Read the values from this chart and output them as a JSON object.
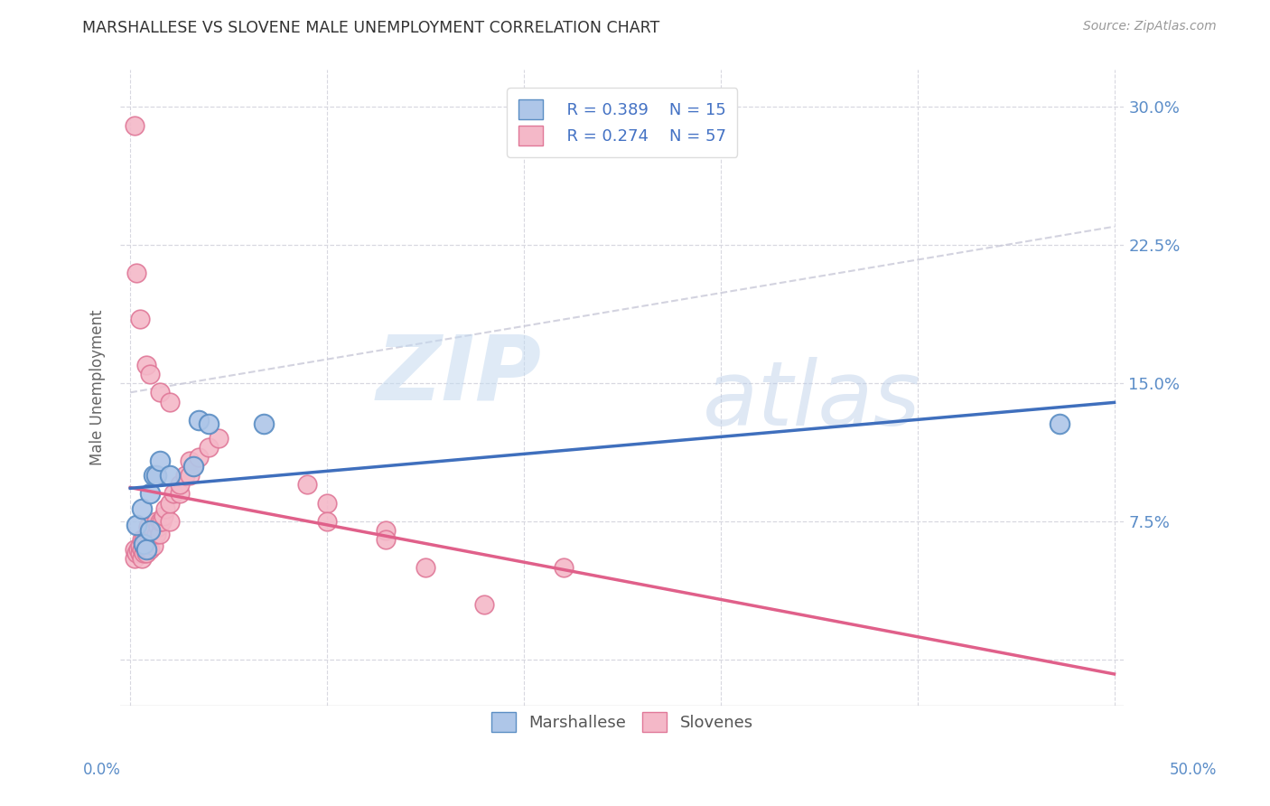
{
  "title": "MARSHALLESE VS SLOVENE MALE UNEMPLOYMENT CORRELATION CHART",
  "source": "Source: ZipAtlas.com",
  "ylabel": "Male Unemployment",
  "yticks": [
    0.0,
    0.075,
    0.15,
    0.225,
    0.3
  ],
  "ytick_labels": [
    "",
    "7.5%",
    "15.0%",
    "22.5%",
    "30.0%"
  ],
  "xlim": [
    -0.005,
    0.505
  ],
  "ylim": [
    -0.025,
    0.32
  ],
  "plot_xlim": [
    0.0,
    0.5
  ],
  "watermark_zip": "ZIP",
  "watermark_atlas": "atlas",
  "legend_r_marshallese": "R = 0.389",
  "legend_n_marshallese": "N = 15",
  "legend_r_slovene": "R = 0.274",
  "legend_n_slovene": "N = 57",
  "marshallese_color": "#aec6e8",
  "slovene_color": "#f4b8c8",
  "marshallese_edge_color": "#5b8ec4",
  "slovene_edge_color": "#e07898",
  "marshallese_line_color": "#3f6fbd",
  "slovene_line_color": "#e0608a",
  "dashed_line_color": "#c8c8d8",
  "background_color": "#ffffff",
  "grid_color": "#d8d8e0",
  "marshallese_x": [
    0.003,
    0.006,
    0.007,
    0.008,
    0.01,
    0.01,
    0.012,
    0.013,
    0.015,
    0.02,
    0.032,
    0.035,
    0.04,
    0.068,
    0.472
  ],
  "marshallese_y": [
    0.073,
    0.082,
    0.063,
    0.06,
    0.07,
    0.09,
    0.1,
    0.1,
    0.108,
    0.1,
    0.105,
    0.13,
    0.128,
    0.128,
    0.128
  ],
  "slovene_x": [
    0.002,
    0.002,
    0.003,
    0.004,
    0.005,
    0.005,
    0.006,
    0.006,
    0.006,
    0.007,
    0.007,
    0.007,
    0.008,
    0.008,
    0.009,
    0.009,
    0.009,
    0.01,
    0.01,
    0.01,
    0.012,
    0.012,
    0.013,
    0.013,
    0.014,
    0.015,
    0.015,
    0.016,
    0.017,
    0.018,
    0.02,
    0.02,
    0.022,
    0.025,
    0.025,
    0.028,
    0.03,
    0.03,
    0.032,
    0.035,
    0.04,
    0.045,
    0.09,
    0.1,
    0.13,
    0.15,
    0.18,
    0.22,
    0.002,
    0.003,
    0.005,
    0.008,
    0.01,
    0.015,
    0.02,
    0.1,
    0.13
  ],
  "slovene_y": [
    0.055,
    0.06,
    0.058,
    0.06,
    0.058,
    0.062,
    0.055,
    0.06,
    0.065,
    0.058,
    0.062,
    0.065,
    0.058,
    0.065,
    0.06,
    0.068,
    0.072,
    0.06,
    0.065,
    0.07,
    0.062,
    0.07,
    0.068,
    0.075,
    0.072,
    0.068,
    0.075,
    0.075,
    0.078,
    0.082,
    0.075,
    0.085,
    0.09,
    0.09,
    0.095,
    0.1,
    0.1,
    0.108,
    0.105,
    0.11,
    0.115,
    0.12,
    0.095,
    0.085,
    0.07,
    0.05,
    0.03,
    0.05,
    0.29,
    0.21,
    0.185,
    0.16,
    0.155,
    0.145,
    0.14,
    0.075,
    0.065
  ]
}
